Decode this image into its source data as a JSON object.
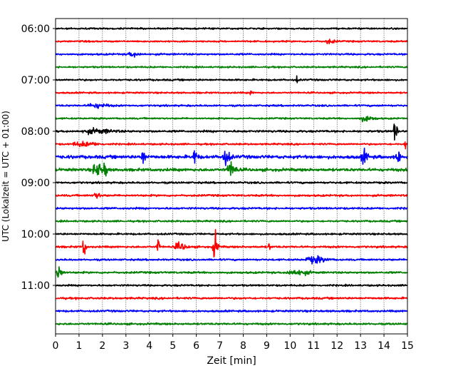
{
  "chart_data": {
    "type": "line",
    "title": "",
    "xlabel": "Zeit  [min]",
    "ylabel": "UTC (Lokalzeit = UTC + 01:00)",
    "xlim": [
      0,
      15
    ],
    "x_ticks": [
      0,
      1,
      2,
      3,
      4,
      5,
      6,
      7,
      8,
      9,
      10,
      11,
      12,
      13,
      14,
      15
    ],
    "x_tick_labels": [
      "0",
      "1",
      "2",
      "3",
      "4",
      "5",
      "6",
      "7",
      "8",
      "9",
      "10",
      "11",
      "12",
      "13",
      "14",
      "15"
    ],
    "y_tick_labels": [
      "06:00",
      "07:00",
      "08:00",
      "09:00",
      "10:00",
      "11:00"
    ],
    "y_tick_rows": [
      0,
      4,
      8,
      12,
      16,
      20
    ],
    "x_grid": "dotted",
    "color_cycle": [
      "#000000",
      "#ff0000",
      "#0000ff",
      "#008000"
    ],
    "series": [
      {
        "start": "06:00",
        "color": "#000000",
        "noise": 1.0,
        "events": []
      },
      {
        "start": "06:15",
        "color": "#ff0000",
        "noise": 1.0,
        "events": [
          {
            "t": 11.6,
            "amp": 2.5,
            "dur": 0.4
          }
        ]
      },
      {
        "start": "06:30",
        "color": "#0000ff",
        "noise": 1.1,
        "events": [
          {
            "t": 3.2,
            "amp": 2.5,
            "dur": 0.5
          }
        ]
      },
      {
        "start": "06:45",
        "color": "#008000",
        "noise": 1.0,
        "events": []
      },
      {
        "start": "07:00",
        "color": "#000000",
        "noise": 1.1,
        "events": [
          {
            "t": 10.25,
            "amp": 5,
            "dur": 0.1
          }
        ]
      },
      {
        "start": "07:15",
        "color": "#ff0000",
        "noise": 1.0,
        "events": [
          {
            "t": 8.3,
            "amp": 3.5,
            "dur": 0.1
          }
        ]
      },
      {
        "start": "07:30",
        "color": "#0000ff",
        "noise": 1.1,
        "events": [
          {
            "t": 1.6,
            "amp": 2.5,
            "dur": 0.8
          }
        ]
      },
      {
        "start": "07:45",
        "color": "#008000",
        "noise": 1.0,
        "events": [
          {
            "t": 13.1,
            "amp": 3,
            "dur": 0.6
          }
        ]
      },
      {
        "start": "08:00",
        "color": "#000000",
        "noise": 1.3,
        "events": [
          {
            "t": 14.45,
            "amp": 13,
            "dur": 0.15
          },
          {
            "t": 1.5,
            "amp": 2.5,
            "dur": 1.2
          }
        ]
      },
      {
        "start": "08:15",
        "color": "#ff0000",
        "noise": 1.1,
        "events": [
          {
            "t": 14.9,
            "amp": 7,
            "dur": 0.1
          },
          {
            "t": 1.0,
            "amp": 2.5,
            "dur": 1.0
          }
        ]
      },
      {
        "start": "08:30",
        "color": "#0000ff",
        "noise": 2.0,
        "events": [
          {
            "t": 3.7,
            "amp": 8,
            "dur": 0.2
          },
          {
            "t": 5.9,
            "amp": 9,
            "dur": 0.2
          },
          {
            "t": 7.2,
            "amp": 9,
            "dur": 0.3
          },
          {
            "t": 13.1,
            "amp": 9,
            "dur": 0.25
          },
          {
            "t": 14.55,
            "amp": 11,
            "dur": 0.15
          }
        ]
      },
      {
        "start": "08:45",
        "color": "#008000",
        "noise": 1.8,
        "events": [
          {
            "t": 1.7,
            "amp": 8,
            "dur": 0.4
          },
          {
            "t": 2.1,
            "amp": 9,
            "dur": 0.15
          },
          {
            "t": 7.4,
            "amp": 9,
            "dur": 0.35
          }
        ]
      },
      {
        "start": "09:00",
        "color": "#000000",
        "noise": 1.2,
        "events": []
      },
      {
        "start": "09:15",
        "color": "#ff0000",
        "noise": 1.2,
        "events": [
          {
            "t": 1.7,
            "amp": 3,
            "dur": 0.3
          }
        ]
      },
      {
        "start": "09:30",
        "color": "#0000ff",
        "noise": 1.2,
        "events": []
      },
      {
        "start": "09:45",
        "color": "#008000",
        "noise": 1.1,
        "events": []
      },
      {
        "start": "10:00",
        "color": "#000000",
        "noise": 1.1,
        "events": []
      },
      {
        "start": "10:15",
        "color": "#ff0000",
        "noise": 1.2,
        "events": [
          {
            "t": 1.2,
            "amp": 14,
            "dur": 0.12
          },
          {
            "t": 4.35,
            "amp": 16,
            "dur": 0.1
          },
          {
            "t": 5.2,
            "amp": 4,
            "dur": 0.5
          },
          {
            "t": 6.75,
            "amp": 17,
            "dur": 0.2
          },
          {
            "t": 9.1,
            "amp": 4,
            "dur": 0.1
          }
        ]
      },
      {
        "start": "10:30",
        "color": "#0000ff",
        "noise": 1.1,
        "events": [
          {
            "t": 10.9,
            "amp": 4,
            "dur": 0.8
          }
        ]
      },
      {
        "start": "10:45",
        "color": "#008000",
        "noise": 1.2,
        "events": [
          {
            "t": 0.1,
            "amp": 9,
            "dur": 0.25
          },
          {
            "t": 10.1,
            "amp": 3,
            "dur": 0.9
          }
        ]
      },
      {
        "start": "11:00",
        "color": "#000000",
        "noise": 1.1,
        "events": []
      },
      {
        "start": "11:15",
        "color": "#ff0000",
        "noise": 1.2,
        "events": []
      },
      {
        "start": "11:30",
        "color": "#0000ff",
        "noise": 1.2,
        "events": []
      },
      {
        "start": "11:45",
        "color": "#008000",
        "noise": 1.2,
        "events": []
      }
    ]
  }
}
